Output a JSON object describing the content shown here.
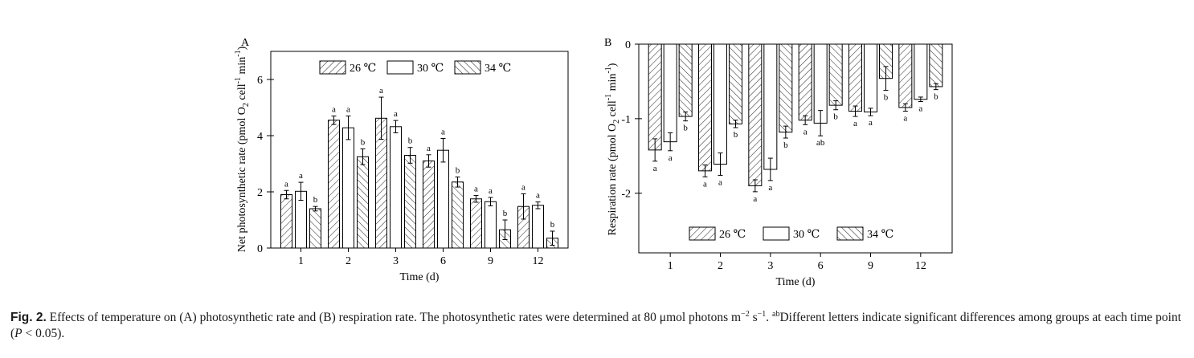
{
  "chart_data": [
    {
      "type": "bar",
      "panel_label": "A",
      "ylabel_main": "Net photosynthetic rate (pmol O",
      "ylabel_sub2": "2",
      "ylabel_cell": " cell",
      "ylabel_sup1": "-1",
      "ylabel_min": " min",
      "ylabel_sup2": "-1",
      "ylabel_close": ")",
      "xlabel": "Time (d)",
      "categories": [
        "1",
        "2",
        "3",
        "6",
        "9",
        "12"
      ],
      "ylim": [
        0,
        7
      ],
      "yticks": [
        0,
        2,
        4,
        6
      ],
      "legend_position": "top",
      "series": [
        {
          "name": "26 ℃",
          "pattern": "hatch-right",
          "values": [
            1.9,
            4.55,
            4.62,
            3.1,
            1.75,
            1.48
          ],
          "errors": [
            0.15,
            0.15,
            0.75,
            0.22,
            0.12,
            0.45
          ],
          "letters": [
            "a",
            "a",
            "a",
            "a",
            "a",
            "a"
          ]
        },
        {
          "name": "30 ℃",
          "pattern": "none",
          "values": [
            2.02,
            4.28,
            4.32,
            3.48,
            1.65,
            1.52
          ],
          "errors": [
            0.32,
            0.42,
            0.22,
            0.42,
            0.15,
            0.12
          ],
          "letters": [
            "a",
            "a",
            "a",
            "a",
            "a",
            "a"
          ]
        },
        {
          "name": "34 ℃",
          "pattern": "hatch-left",
          "values": [
            1.4,
            3.25,
            3.3,
            2.35,
            0.65,
            0.35
          ],
          "errors": [
            0.08,
            0.28,
            0.28,
            0.18,
            0.35,
            0.25
          ],
          "letters": [
            "b",
            "b",
            "b",
            "b",
            "b",
            "b"
          ]
        }
      ]
    },
    {
      "type": "bar",
      "panel_label": "B",
      "ylabel_main": "Respiration rate (pmol O",
      "ylabel_sub2": "2",
      "ylabel_cell": " cell",
      "ylabel_sup1": "-1",
      "ylabel_min": " min",
      "ylabel_sup2": "-1",
      "ylabel_close": ")",
      "xlabel": "Time (d)",
      "categories": [
        "1",
        "2",
        "3",
        "6",
        "9",
        "12"
      ],
      "ylim": [
        -2.8,
        0
      ],
      "yticks": [
        0,
        -1,
        -2
      ],
      "legend_position": "bottom",
      "series": [
        {
          "name": "26 ℃",
          "pattern": "hatch-right",
          "values": [
            -1.42,
            -1.7,
            -1.9,
            -1.02,
            -0.9,
            -0.85
          ],
          "errors": [
            0.15,
            0.08,
            0.08,
            0.06,
            0.07,
            0.05
          ],
          "letters": [
            "a",
            "a",
            "a",
            "a",
            "a",
            "a"
          ]
        },
        {
          "name": "30 ℃",
          "pattern": "none",
          "values": [
            -1.31,
            -1.61,
            -1.68,
            -1.06,
            -0.91,
            -0.74
          ],
          "errors": [
            0.12,
            0.15,
            0.15,
            0.17,
            0.05,
            0.03
          ],
          "letters": [
            "a",
            "a",
            "a",
            "ab",
            "a",
            "a"
          ]
        },
        {
          "name": "34 ℃",
          "pattern": "hatch-left",
          "values": [
            -0.97,
            -1.07,
            -1.18,
            -0.82,
            -0.46,
            -0.57
          ],
          "errors": [
            0.06,
            0.05,
            0.08,
            0.06,
            0.16,
            0.04
          ],
          "letters": [
            "b",
            "b",
            "b",
            "b",
            "b",
            "b"
          ]
        }
      ]
    }
  ],
  "caption": {
    "fig_label": "Fig. 2.",
    "text_1": "Effects of temperature on (A) photosynthetic rate and (B) respiration rate. The photosynthetic rates were determined at 80 μmol photons m",
    "sup_1": "−2",
    "text_2": " s",
    "sup_2": "−1",
    "text_3": ". ",
    "sup_3": "ab",
    "text_4": "Different letters indicate significant differences among groups at each time point (",
    "p_italic": "P",
    "text_5": " < 0.05)."
  }
}
